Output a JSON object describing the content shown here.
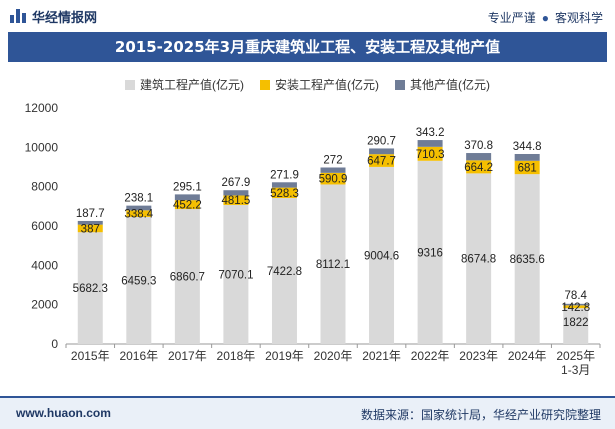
{
  "header": {
    "logo_text": "华经情报网",
    "tag_1": "专业严谨",
    "tag_2": "客观科学",
    "separator": "●"
  },
  "footer": {
    "url": "www.huaon.com",
    "source": "数据来源：国家统计局，华经产业研究院整理"
  },
  "colors": {
    "brand": "#2f5597",
    "series_1": "#d9d9d9",
    "series_2": "#f5bf00",
    "series_3": "#6f7c96"
  },
  "chart_data": {
    "type": "bar",
    "stacked": true,
    "title": "2015-2025年3月重庆建筑业工程、安装工程及其他产值",
    "categories": [
      "2015年",
      "2016年",
      "2017年",
      "2018年",
      "2019年",
      "2020年",
      "2021年",
      "2022年",
      "2023年",
      "2024年",
      "2025年 1-3月"
    ],
    "series": [
      {
        "name": "建筑工程产值(亿元)",
        "color": "#d9d9d9",
        "values": [
          5682.3,
          6459.3,
          6860.7,
          7070.1,
          7422.8,
          8112.1,
          9004.6,
          9316,
          8674.8,
          8635.6,
          1822
        ]
      },
      {
        "name": "安装工程产值(亿元)",
        "color": "#f5bf00",
        "values": [
          387,
          338.4,
          452.2,
          481.5,
          528.3,
          590.9,
          647.7,
          710.3,
          664.2,
          681,
          142.8
        ]
      },
      {
        "name": "其他产值(亿元)",
        "color": "#6f7c96",
        "values": [
          187.7,
          238.1,
          295.1,
          267.9,
          271.9,
          272,
          290.7,
          343.2,
          370.8,
          344.8,
          78.4
        ]
      }
    ],
    "ylim": [
      0,
      12000
    ],
    "yticks": [
      0,
      2000,
      4000,
      6000,
      8000,
      10000,
      12000
    ],
    "legend_position": "top-center",
    "grid": false
  }
}
